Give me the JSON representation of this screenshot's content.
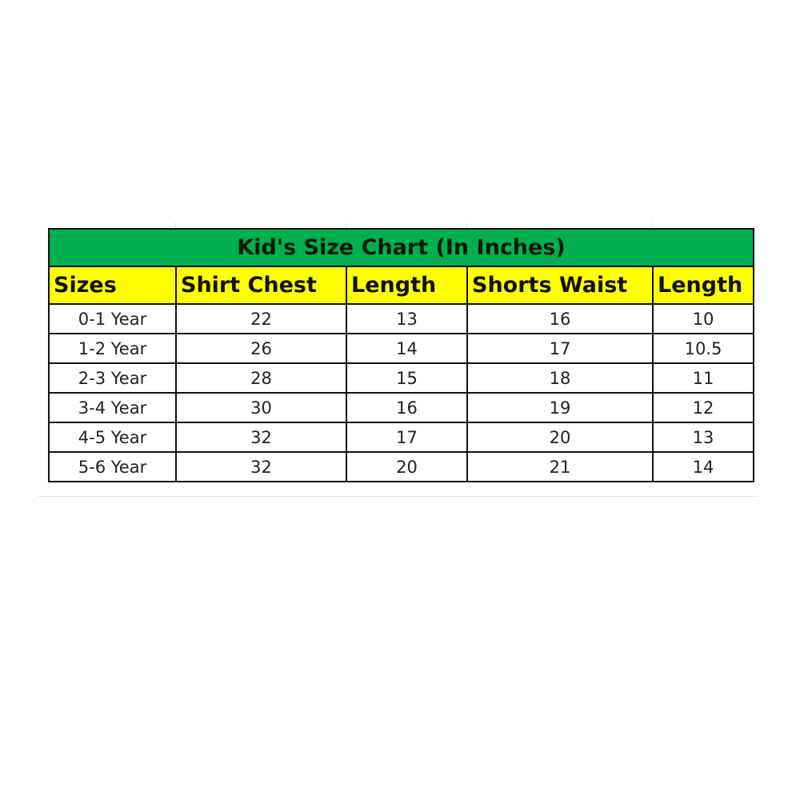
{
  "title": "Kid's Size Chart (In Inches)",
  "colors": {
    "title_bg": "#00b050",
    "header_bg": "#ffff00"
  },
  "columns": [
    "Sizes",
    "Shirt Chest",
    "Length",
    "Shorts Waist",
    "Length"
  ],
  "rows": [
    [
      "0-1 Year",
      "22",
      "13",
      "16",
      "10"
    ],
    [
      "1-2 Year",
      "26",
      "14",
      "17",
      "10.5"
    ],
    [
      "2-3 Year",
      "28",
      "15",
      "18",
      "11"
    ],
    [
      "3-4 Year",
      "30",
      "16",
      "19",
      "12"
    ],
    [
      "4-5 Year",
      "32",
      "17",
      "20",
      "13"
    ],
    [
      "5-6 Year",
      "32",
      "20",
      "21",
      "14"
    ]
  ]
}
